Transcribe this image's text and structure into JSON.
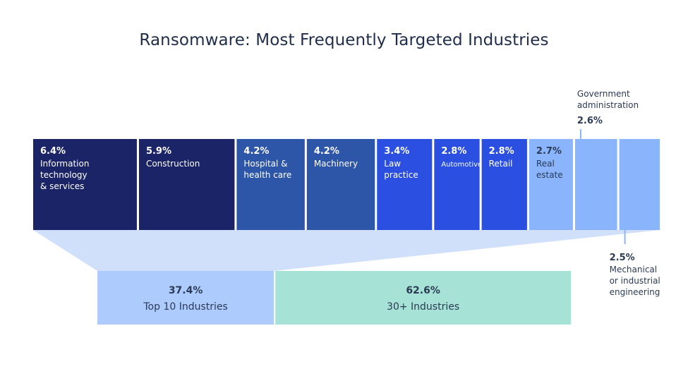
{
  "chart_data": {
    "type": "treemap-bar",
    "title": "Ransomware: Most Frequently Targeted Industries",
    "industries": [
      {
        "label": [
          "Information",
          "technology",
          "& services"
        ],
        "value": 6.4,
        "value_label": "6.4%",
        "color": "#1a2466",
        "text_color": "#ffffff"
      },
      {
        "label": [
          "Construction"
        ],
        "value": 5.9,
        "value_label": "5.9%",
        "color": "#1a2466",
        "text_color": "#ffffff"
      },
      {
        "label": [
          "Hospital &",
          "health care"
        ],
        "value": 4.2,
        "value_label": "4.2%",
        "color": "#2d55a8",
        "text_color": "#ffffff"
      },
      {
        "label": [
          "Machinery"
        ],
        "value": 4.2,
        "value_label": "4.2%",
        "color": "#2d55a8",
        "text_color": "#ffffff"
      },
      {
        "label": [
          "Law",
          "practice"
        ],
        "value": 3.4,
        "value_label": "3.4%",
        "color": "#2b4fe0",
        "text_color": "#ffffff"
      },
      {
        "label": [
          "Automotive"
        ],
        "value": 2.8,
        "value_label": "2.8%",
        "color": "#2b4fe0",
        "text_color": "#ffffff",
        "small_label": true
      },
      {
        "label": [
          "Retail"
        ],
        "value": 2.8,
        "value_label": "2.8%",
        "color": "#2b4fe0",
        "text_color": "#ffffff"
      },
      {
        "label": [
          "Real",
          "estate"
        ],
        "value": 2.7,
        "value_label": "2.7%",
        "color": "#8ab4fb",
        "text_color": "#2b3a55"
      },
      {
        "label": [
          "Government",
          "administration"
        ],
        "value": 2.6,
        "value_label": "2.6%",
        "color": "#8ab4fb",
        "text_color": "#2b3a55",
        "callout": "above"
      },
      {
        "label": [
          "Mechanical",
          "or industrial",
          "engineering"
        ],
        "value": 2.5,
        "value_label": "2.5%",
        "color": "#8ab4fb",
        "text_color": "#2b3a55",
        "callout": "below"
      }
    ],
    "summary": [
      {
        "value": 37.4,
        "value_label": "37.4%",
        "label": "Top 10 Industries",
        "color": "#aecbfd"
      },
      {
        "value": 62.6,
        "value_label": "62.6%",
        "label": "30+ Industries",
        "color": "#a6e2d5"
      }
    ],
    "funnel_color": "#d0e0fa",
    "callout_line_color": "#8ab4fb",
    "label_dark_color": "#2b3a55"
  }
}
